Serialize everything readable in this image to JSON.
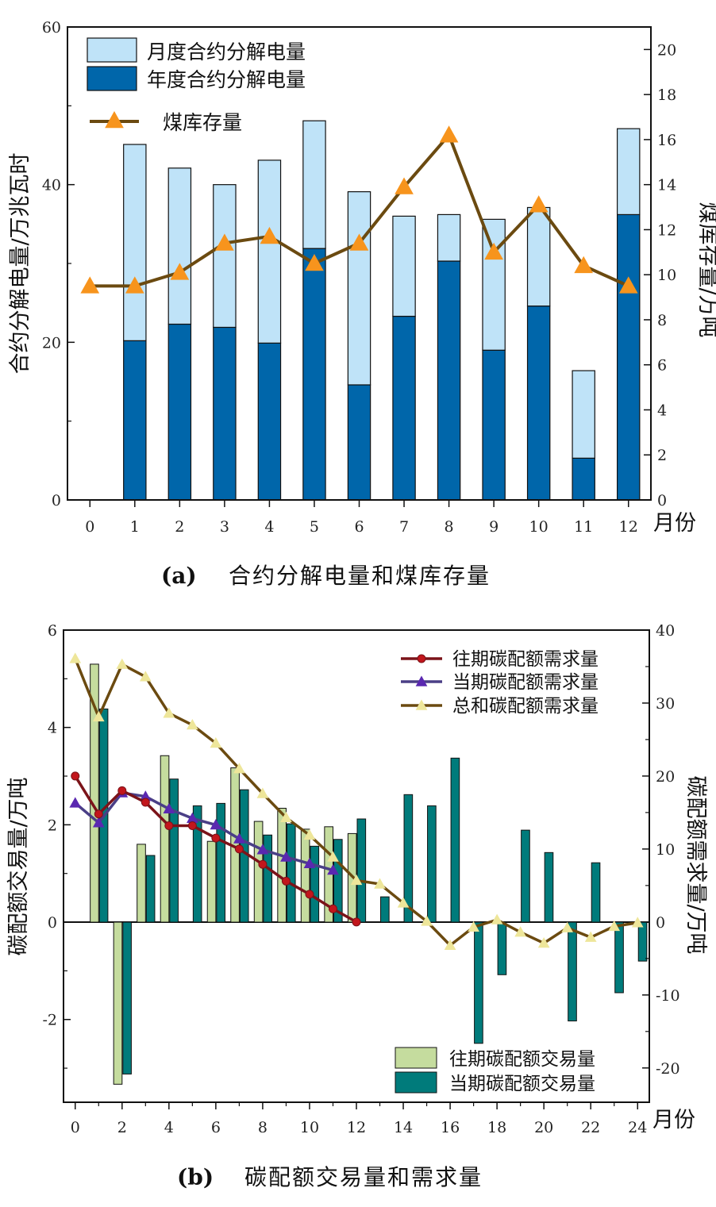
{
  "chart_data": [
    {
      "id": "a",
      "type": "bar",
      "caption_label": "(a)",
      "caption_text": "合约分解电量和煤库存量",
      "xlabel": "月份",
      "ylabel_left": "合约分解电量/万兆瓦时",
      "ylabel_right": "煤库存量/万吨",
      "xlim": [
        -0.5,
        12.5
      ],
      "ylim_left": [
        0,
        60
      ],
      "ylim_right": [
        0,
        21
      ],
      "left_ticks": [
        0,
        20,
        40,
        60
      ],
      "right_ticks": [
        0,
        2,
        4,
        6,
        8,
        10,
        12,
        14,
        16,
        18,
        20
      ],
      "x_ticks": [
        0,
        1,
        2,
        3,
        4,
        5,
        6,
        7,
        8,
        9,
        10,
        11,
        12
      ],
      "stacked": true,
      "categories": [
        1,
        2,
        3,
        4,
        5,
        6,
        7,
        8,
        9,
        10,
        11,
        12
      ],
      "series": [
        {
          "name": "年度合约分解电量",
          "color": "#0066aa",
          "values": [
            20.2,
            22.3,
            21.9,
            19.9,
            31.9,
            14.6,
            23.3,
            30.3,
            19.0,
            24.6,
            5.3,
            36.2
          ]
        },
        {
          "name": "月度合约分解电量",
          "color": "#bfe3f8",
          "values": [
            24.9,
            19.8,
            18.1,
            23.2,
            16.2,
            24.5,
            12.7,
            5.9,
            16.6,
            12.5,
            11.1,
            10.9
          ]
        }
      ],
      "line": {
        "name": "煤库存量",
        "axis": "right",
        "color": "#6b4a10",
        "marker_color": "#f7941d",
        "x": [
          0,
          1,
          2,
          3,
          4,
          5,
          6,
          7,
          8,
          9,
          10,
          11,
          12
        ],
        "values": [
          9.5,
          9.5,
          10.1,
          11.4,
          11.7,
          10.5,
          11.4,
          13.9,
          16.2,
          11.0,
          13.1,
          10.4,
          9.5
        ]
      }
    },
    {
      "id": "b",
      "type": "bar",
      "caption_label": "(b)",
      "caption_text": "碳配额交易量和需求量",
      "xlabel": "月份",
      "ylabel_left": "碳配额交易量/万吨",
      "ylabel_right": "碳配额需求量/万吨",
      "xlim": [
        -0.5,
        24.5
      ],
      "ylim_left": [
        -3.7,
        6
      ],
      "ylim_right": [
        -24.7,
        40
      ],
      "left_ticks": [
        -2,
        0,
        2,
        4,
        6
      ],
      "right_ticks": [
        -20,
        -10,
        0,
        10,
        20,
        30,
        40
      ],
      "x_ticks": [
        0,
        2,
        4,
        6,
        8,
        10,
        12,
        14,
        16,
        18,
        20,
        22,
        24
      ],
      "bar_series": [
        {
          "name": "往期碳配额交易量",
          "color": "#c5dc9e",
          "x": [
            1,
            2,
            3,
            4,
            5,
            6,
            7,
            8,
            9,
            10,
            11,
            12
          ],
          "values": [
            5.3,
            -3.33,
            1.6,
            3.42,
            0,
            1.66,
            3.17,
            2.07,
            2.34,
            1.91,
            1.96,
            1.82
          ]
        },
        {
          "name": "当期碳配额交易量",
          "color": "#007b7b",
          "x": [
            1,
            2,
            3,
            4,
            5,
            6,
            7,
            8,
            9,
            10,
            11,
            12,
            13,
            14,
            15,
            16,
            17,
            18,
            19,
            20,
            21,
            22,
            23,
            24
          ],
          "values": [
            4.38,
            -3.12,
            1.37,
            2.94,
            2.39,
            2.44,
            2.72,
            1.79,
            2.02,
            1.56,
            1.7,
            2.12,
            0.52,
            2.62,
            2.39,
            3.37,
            -2.49,
            -1.08,
            1.89,
            1.43,
            -2.03,
            1.22,
            -1.45,
            -0.8
          ]
        }
      ],
      "line_series": [
        {
          "name": "往期碳配额需求量",
          "color": "#7b1319",
          "marker": "circle",
          "marker_color": "#c2161c",
          "x": [
            0,
            1,
            2,
            3,
            4,
            5,
            6,
            7,
            8,
            9,
            10,
            11,
            12
          ],
          "values": [
            20,
            14.8,
            18,
            16.4,
            13.2,
            13.2,
            11.5,
            10,
            7.9,
            5.6,
            3.8,
            1.8,
            0
          ]
        },
        {
          "name": "当期碳配额需求量",
          "color": "#4a3f86",
          "marker": "triangle",
          "marker_color": "#5a28b0",
          "x": [
            0,
            1,
            2,
            3,
            4,
            5,
            6,
            7,
            8,
            9,
            10,
            11
          ],
          "values": [
            16.3,
            13.6,
            17.7,
            17.2,
            15.5,
            14.2,
            13.3,
            11.4,
            9.9,
            8.9,
            8.0,
            7.1
          ]
        },
        {
          "name": "总和碳配额需求量",
          "color": "#6b4a10",
          "marker": "triangle",
          "marker_color": "#eee69a",
          "x": [
            0,
            1,
            2,
            3,
            4,
            5,
            6,
            7,
            8,
            9,
            10,
            11,
            12,
            13,
            14,
            15,
            16,
            17,
            18,
            19,
            20,
            21,
            22,
            23,
            24
          ],
          "values": [
            36.1,
            28.1,
            35.3,
            33.6,
            28.6,
            27.0,
            24.5,
            21.0,
            17.6,
            14.3,
            11.9,
            8.9,
            5.7,
            5.2,
            2.6,
            0.1,
            -3.2,
            -0.7,
            0.3,
            -1.4,
            -2.9,
            -0.8,
            -2.1,
            -0.6,
            -0.1
          ]
        }
      ]
    }
  ]
}
